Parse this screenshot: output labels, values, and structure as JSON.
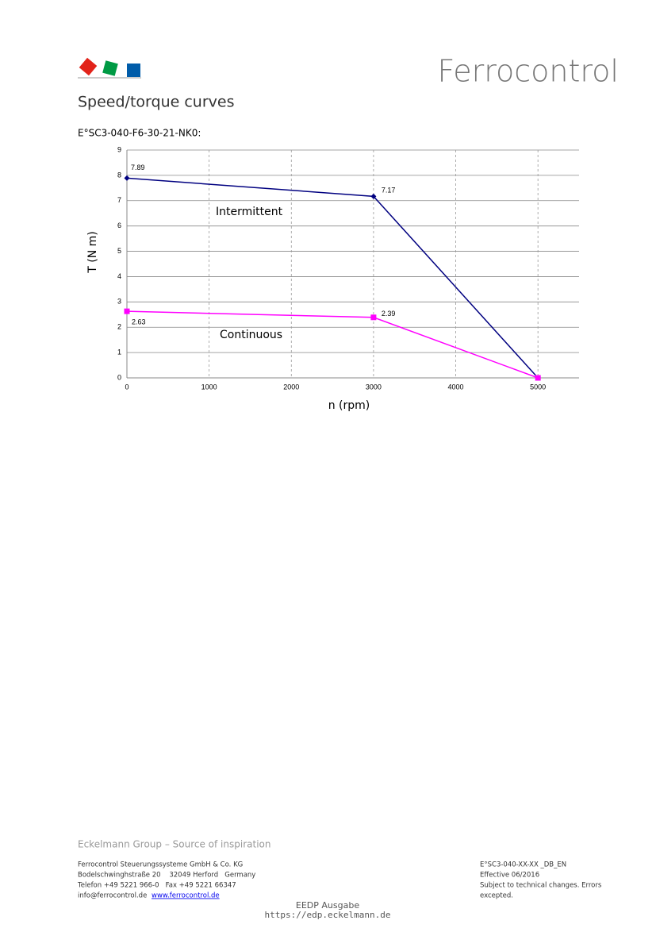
{
  "header": {
    "brand": "Ferrocontrol",
    "title": "Speed/torque curves",
    "subtitle": "E°SC3-040-F6-30-21-NK0:"
  },
  "chart_data": {
    "type": "line",
    "xlabel": "n (rpm)",
    "ylabel": "T (N m)",
    "x": [
      0,
      3000,
      5000
    ],
    "series": [
      {
        "name": "Intermittent",
        "color": "#000080",
        "marker": "diamond",
        "values": [
          7.89,
          7.17,
          0
        ],
        "value_labels": [
          "7.89",
          "7.17",
          null
        ]
      },
      {
        "name": "Continuous",
        "color": "#ff00ff",
        "marker": "square",
        "values": [
          2.63,
          2.39,
          0
        ],
        "value_labels": [
          "2.63",
          "2.39",
          null
        ]
      }
    ],
    "xlim": [
      0,
      5500
    ],
    "xticks": [
      0,
      1000,
      2000,
      3000,
      4000,
      5000
    ],
    "ylim": [
      0,
      9
    ],
    "yticks": [
      0,
      1,
      2,
      3,
      4,
      5,
      6,
      7,
      8,
      9
    ],
    "grid": true
  },
  "footer": {
    "tagline": "Eckelmann Group – Source of inspiration",
    "company": [
      "Ferrocontrol Steuerungssysteme GmbH & Co. KG",
      "Bodelschwinghstraße 20    32049 Herford   Germany",
      "Telefon +49 5221 966-0   Fax +49 5221 66347"
    ],
    "email": "info@ferrocontrol.de",
    "website": "www.ferrocontrol.de",
    "document": [
      "E°SC3-040-XX-XX _DB_EN",
      "Effective 06/2016",
      "Subject to technical changes. Errors",
      "excepted."
    ],
    "watermark": [
      "EEDP Ausgabe",
      "https://edp.eckelmann.de"
    ]
  }
}
